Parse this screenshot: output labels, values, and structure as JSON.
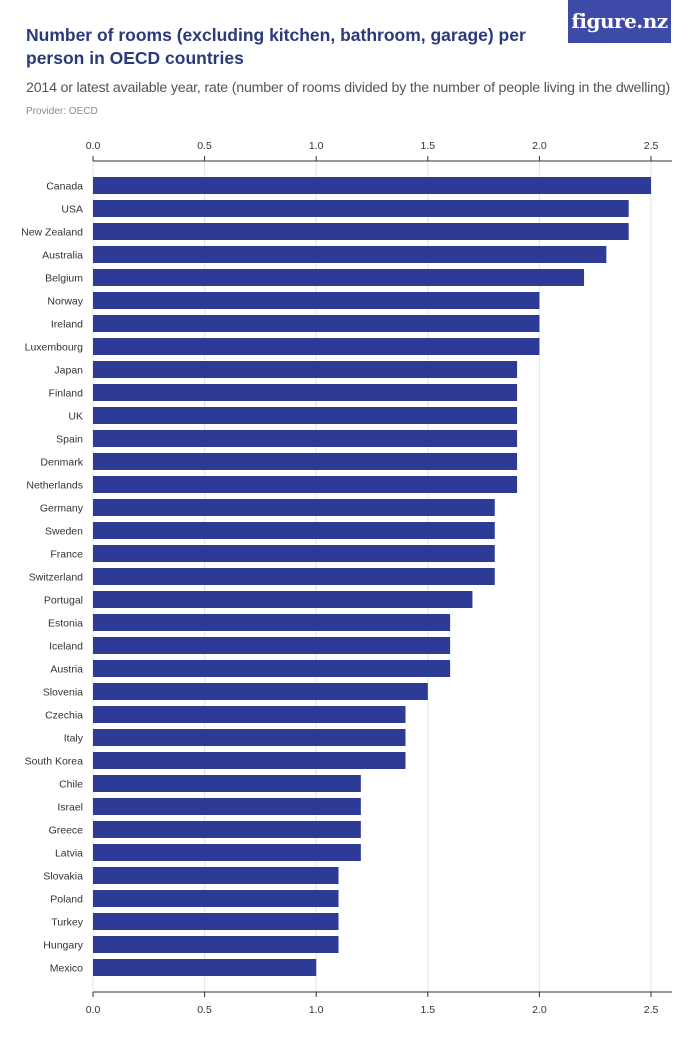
{
  "title": "Number of rooms (excluding kitchen, bathroom, garage) per person in OECD countries",
  "subtitle": "2014 or latest available year, rate (number of rooms divided by the number of people living in the dwelling)",
  "provider": "Provider: OECD",
  "logo": "figure.nz",
  "colors": {
    "bar": "#2e3b96",
    "grid": "#e3e3e3",
    "axis": "#333333"
  },
  "chart_data": {
    "type": "bar",
    "orientation": "horizontal",
    "categories": [
      "Canada",
      "USA",
      "New Zealand",
      "Australia",
      "Belgium",
      "Norway",
      "Ireland",
      "Luxembourg",
      "Japan",
      "Finland",
      "UK",
      "Spain",
      "Denmark",
      "Netherlands",
      "Germany",
      "Sweden",
      "France",
      "Switzerland",
      "Portugal",
      "Estonia",
      "Iceland",
      "Austria",
      "Slovenia",
      "Czechia",
      "Italy",
      "South Korea",
      "Chile",
      "Israel",
      "Greece",
      "Latvia",
      "Slovakia",
      "Poland",
      "Turkey",
      "Hungary",
      "Mexico"
    ],
    "values": [
      2.5,
      2.4,
      2.4,
      2.3,
      2.2,
      2.0,
      2.0,
      2.0,
      1.9,
      1.9,
      1.9,
      1.9,
      1.9,
      1.9,
      1.8,
      1.8,
      1.8,
      1.8,
      1.7,
      1.6,
      1.6,
      1.6,
      1.5,
      1.4,
      1.4,
      1.4,
      1.2,
      1.2,
      1.2,
      1.2,
      1.1,
      1.1,
      1.1,
      1.1,
      1.0
    ],
    "xticks": [
      "0.0",
      "0.5",
      "1.0",
      "1.5",
      "2.0",
      "2.5"
    ],
    "xlim": [
      0,
      2.5
    ],
    "grid": true,
    "axis_position": "top and bottom"
  }
}
